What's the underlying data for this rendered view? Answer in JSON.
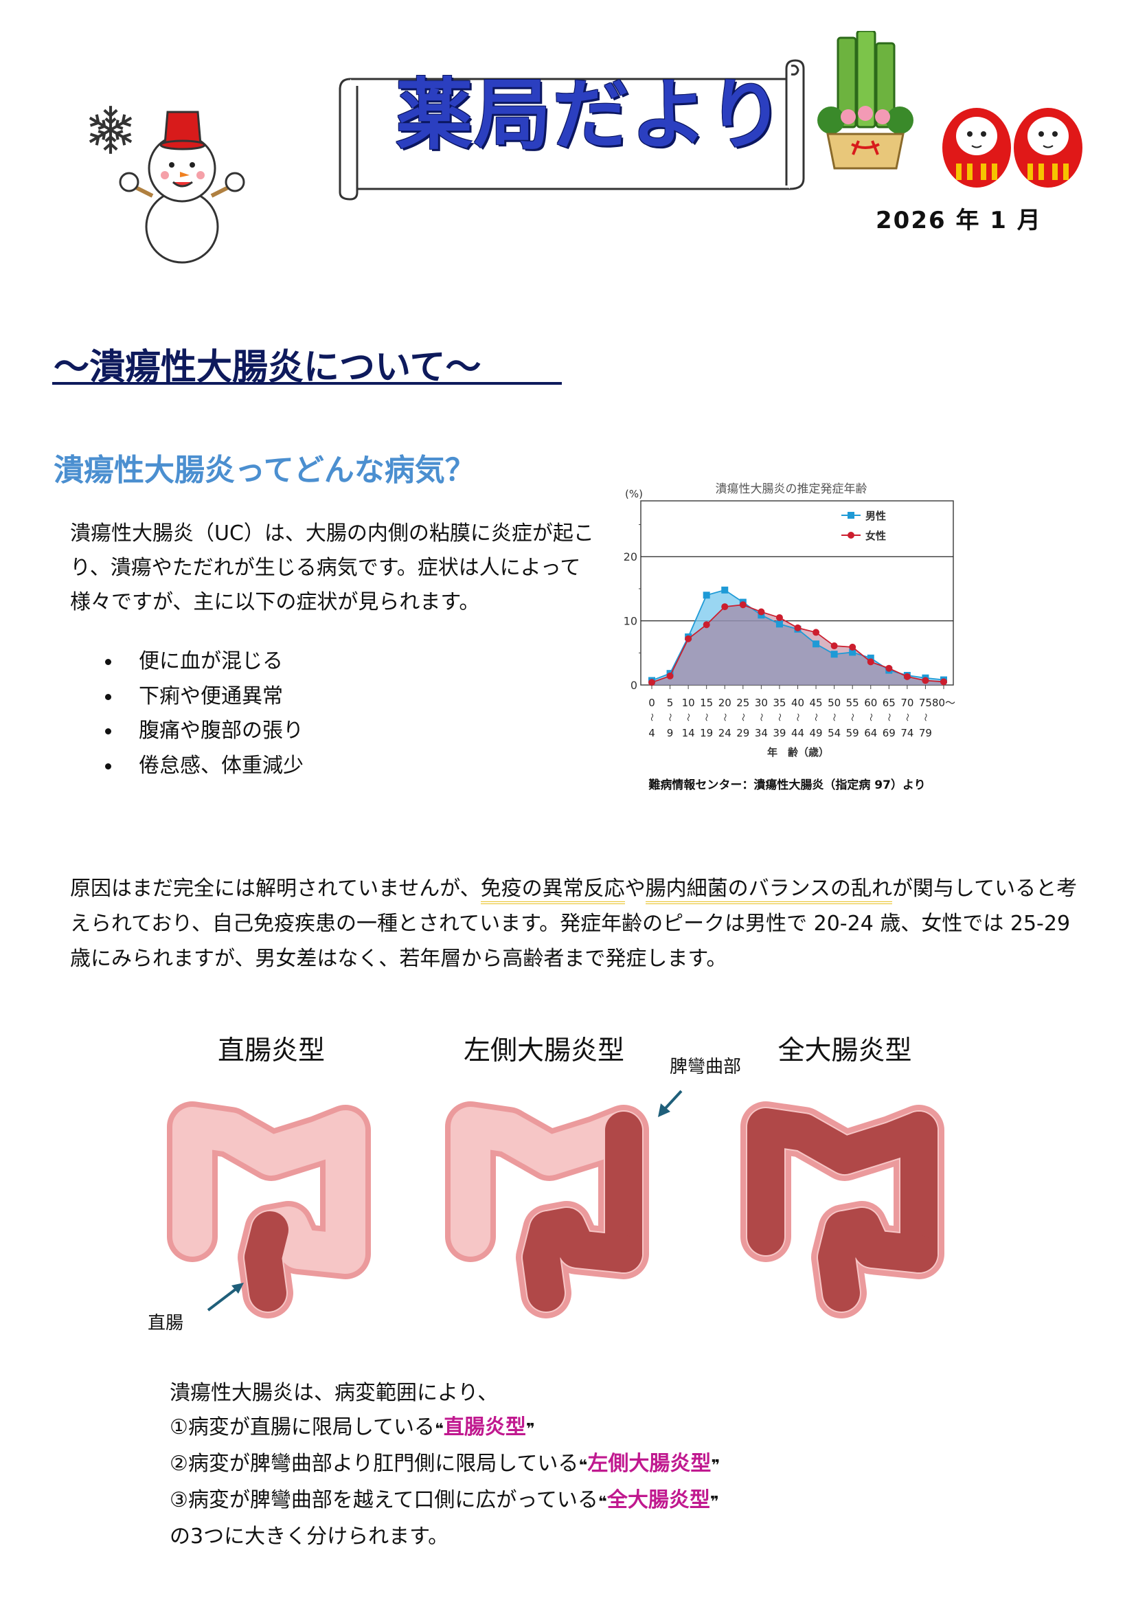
{
  "header": {
    "title": "薬局だより",
    "date": "2026 年 1 月",
    "decorations": [
      "snowflake-icon",
      "snowman-icon",
      "kadomatsu-icon",
      "daruma-icon"
    ]
  },
  "article": {
    "heading": "～潰瘍性大腸炎について～",
    "subheading": "潰瘍性大腸炎ってどんな病気？",
    "intro": "潰瘍性大腸炎（UC）は、大腸の内側の粘膜に炎症が起こり、潰瘍やただれが生じる病気です。症状は人によって様々ですが、主に以下の症状が見られます。",
    "symptoms": [
      "便に血が混じる",
      "下痢や便通異常",
      "腹痛や腹部の張り",
      "倦怠感、体重減少"
    ],
    "cause": {
      "part1": "原因はまだ完全には解明されていませんが、",
      "highlight1": "免疫の異常反応",
      "part2": "や",
      "highlight2": "腸内細菌のバランスの乱れ",
      "part3": "が関与していると考えられており、自己免疫疾患の一種とされています。発症年齢のピークは男性で 20-24 歳、女性では 25-29 歳にみられますが、男女差はなく、若年層から高齢者まで発症します。"
    },
    "types": {
      "labels": [
        "直腸炎型",
        "左側大腸炎型",
        "全大腸炎型"
      ],
      "annotation_splenic": "脾彎曲部",
      "annotation_rectum": "直腸",
      "colors": {
        "healthy": "#f6c6c6",
        "outline": "#eb9a9c",
        "inflamed": "#b04848"
      }
    },
    "classification": {
      "intro": "潰瘍性大腸炎は、病変範囲により、",
      "items": [
        {
          "text": "①病変が直腸に限局している",
          "type": "直腸炎型"
        },
        {
          "text": "②病変が脾彎曲部より肛門側に限局している",
          "type": "左側大腸炎型"
        },
        {
          "text": "③病変が脾彎曲部を越えて口側に広がっている",
          "type": "全大腸炎型"
        }
      ],
      "open_quote": "❝",
      "close_quote": "❞",
      "outro": "の3つに大きく分けられます。",
      "accent_color": "#c0198f"
    }
  },
  "chart_data": {
    "type": "line",
    "title": "潰瘍性大腸炎の推定発症年齢",
    "ylabel": "(%)",
    "xlabel": "年　齢（歳）",
    "source": "難病情報センター：潰瘍性大腸炎（指定病 97）より",
    "categories": [
      {
        "from": "0",
        "to": "4"
      },
      {
        "from": "5",
        "to": "9"
      },
      {
        "from": "10",
        "to": "14"
      },
      {
        "from": "15",
        "to": "19"
      },
      {
        "from": "20",
        "to": "24"
      },
      {
        "from": "25",
        "to": "29"
      },
      {
        "from": "30",
        "to": "34"
      },
      {
        "from": "35",
        "to": "39"
      },
      {
        "from": "40",
        "to": "44"
      },
      {
        "from": "45",
        "to": "49"
      },
      {
        "from": "50",
        "to": "54"
      },
      {
        "from": "55",
        "to": "59"
      },
      {
        "from": "60",
        "to": "64"
      },
      {
        "from": "65",
        "to": "69"
      },
      {
        "from": "70",
        "to": "74"
      },
      {
        "from": "75",
        "to": "79"
      },
      {
        "from": "80～",
        "to": ""
      }
    ],
    "range_mark": "〜",
    "series": [
      {
        "name": "男性",
        "color": "#1e9ad6",
        "marker": "square",
        "values": [
          0.7,
          1.8,
          7.5,
          14.0,
          14.8,
          12.9,
          10.9,
          9.5,
          8.7,
          6.4,
          4.8,
          5.1,
          4.2,
          2.3,
          1.5,
          1.1,
          0.8
        ]
      },
      {
        "name": "女性",
        "color": "#cc1e2e",
        "marker": "circle",
        "values": [
          0.4,
          1.4,
          7.2,
          9.4,
          12.2,
          12.5,
          11.4,
          10.5,
          8.9,
          8.2,
          6.1,
          5.9,
          3.6,
          2.6,
          1.3,
          0.7,
          0.5
        ]
      }
    ],
    "yticks": [
      0,
      10,
      20
    ],
    "ylim": [
      0,
      28.7
    ],
    "grid": "horizontal at 10 and 20",
    "legend": "top-right",
    "area_fill": true
  }
}
